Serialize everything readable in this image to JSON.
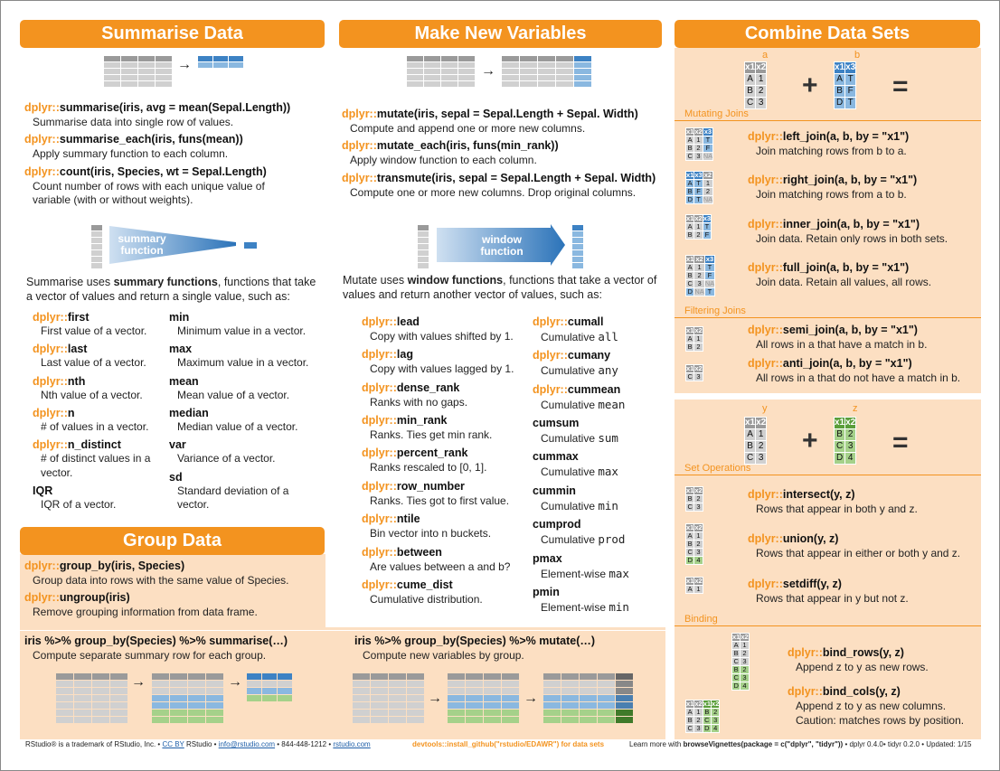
{
  "summarise": {
    "title": "Summarise Data",
    "items": [
      {
        "pkg": "dplyr::",
        "fn": "summarise(iris, avg = mean(Sepal.Length))",
        "desc": "Summarise data into single row of values."
      },
      {
        "pkg": "dplyr::",
        "fn": "summarise_each(iris, funs(mean))",
        "desc": "Apply summary function to each column."
      },
      {
        "pkg": "dplyr::",
        "fn": "count(iris, Species, wt = Sepal.Length)",
        "desc": "Count number of rows with each unique value of variable (with or without weights)."
      }
    ],
    "diagram_label": "summary function",
    "intro_pre": "Summarise uses ",
    "intro_bold": "summary functions",
    "intro_post": ", functions that take a vector of values and return a single value, such as:",
    "left_funcs": [
      {
        "pkg": "dplyr::",
        "fn": "first",
        "desc": "First value of a vector."
      },
      {
        "pkg": "dplyr::",
        "fn": "last",
        "desc": "Last value of a vector."
      },
      {
        "pkg": "dplyr::",
        "fn": "nth",
        "desc": "Nth value of a vector."
      },
      {
        "pkg": "dplyr::",
        "fn": "n",
        "desc": "# of values in a vector."
      },
      {
        "pkg": "dplyr::",
        "fn": "n_distinct",
        "desc": "# of distinct values in a vector."
      },
      {
        "pkg": "",
        "fn": "IQR",
        "desc": "IQR of a vector."
      }
    ],
    "right_funcs": [
      {
        "fn": "min",
        "desc": "Minimum value in a vector."
      },
      {
        "fn": "max",
        "desc": "Maximum value in a vector."
      },
      {
        "fn": "mean",
        "desc": "Mean value of a vector."
      },
      {
        "fn": "median",
        "desc": "Median value of a vector."
      },
      {
        "fn": "var",
        "desc": "Variance of a vector."
      },
      {
        "fn": "sd",
        "desc": "Standard deviation of a vector."
      }
    ]
  },
  "group": {
    "title": "Group Data",
    "items": [
      {
        "pkg": "dplyr::",
        "fn": "group_by(iris, Species)",
        "desc": "Group data into rows with the same value of Species."
      },
      {
        "pkg": "dplyr::",
        "fn": "ungroup(iris)",
        "desc": "Remove grouping information from data frame."
      }
    ],
    "pipe_left": {
      "code": "iris  %>%  group_by(Species)  %>%  summarise(…)",
      "desc": "Compute separate summary row for each group."
    },
    "pipe_right": {
      "code": "iris  %>%  group_by(Species)  %>%  mutate(…)",
      "desc": "Compute new variables by group."
    }
  },
  "mutate": {
    "title": "Make New Variables",
    "items": [
      {
        "pkg": "dplyr::",
        "fn": "mutate(iris, sepal = Sepal.Length + Sepal. Width)",
        "desc": "Compute and append one or more new columns."
      },
      {
        "pkg": "dplyr::",
        "fn": "mutate_each(iris, funs(min_rank))",
        "desc": "Apply window function to each column."
      },
      {
        "pkg": "dplyr::",
        "fn": "transmute(iris, sepal = Sepal.Length + Sepal. Width)",
        "desc": "Compute one or more new columns. Drop original columns."
      }
    ],
    "diagram_label": "window function",
    "intro_pre": "Mutate uses ",
    "intro_bold": "window functions",
    "intro_post": ", functions that take a vector of values and return another vector of values, such as:",
    "left_funcs": [
      {
        "pkg": "dplyr::",
        "fn": "lead",
        "desc": "Copy with values shifted by 1."
      },
      {
        "pkg": "dplyr::",
        "fn": "lag",
        "desc": "Copy with values lagged by 1."
      },
      {
        "pkg": "dplyr::",
        "fn": "dense_rank",
        "desc": "Ranks with no gaps."
      },
      {
        "pkg": "dplyr::",
        "fn": "min_rank",
        "desc": "Ranks. Ties get min rank."
      },
      {
        "pkg": "dplyr::",
        "fn": "percent_rank",
        "desc": "Ranks rescaled to [0, 1]."
      },
      {
        "pkg": "dplyr::",
        "fn": "row_number",
        "desc": "Ranks. Ties got to first value."
      },
      {
        "pkg": "dplyr::",
        "fn": "ntile",
        "desc": "Bin vector into n buckets."
      },
      {
        "pkg": "dplyr::",
        "fn": "between",
        "desc": "Are values between a and b?"
      },
      {
        "pkg": "dplyr::",
        "fn": "cume_dist",
        "desc": "Cumulative distribution."
      }
    ],
    "right_funcs": [
      {
        "pkg": "dplyr::",
        "fn": "cumall",
        "desc_pre": "Cumulative ",
        "desc_mono": "all"
      },
      {
        "pkg": "dplyr::",
        "fn": "cumany",
        "desc_pre": "Cumulative ",
        "desc_mono": "any"
      },
      {
        "pkg": "dplyr::",
        "fn": "cummean",
        "desc_pre": "Cumulative ",
        "desc_mono": "mean"
      },
      {
        "pkg": "",
        "fn": "cumsum",
        "desc_pre": "Cumulative ",
        "desc_mono": "sum"
      },
      {
        "pkg": "",
        "fn": "cummax",
        "desc_pre": "Cumulative ",
        "desc_mono": "max"
      },
      {
        "pkg": "",
        "fn": "cummin",
        "desc_pre": "Cumulative ",
        "desc_mono": "min"
      },
      {
        "pkg": "",
        "fn": "cumprod",
        "desc_pre": "Cumulative ",
        "desc_mono": "prod"
      },
      {
        "pkg": "",
        "fn": "pmax",
        "desc_pre": "Element-wise ",
        "desc_mono": "max"
      },
      {
        "pkg": "",
        "fn": "pmin",
        "desc_pre": "Element-wise ",
        "desc_mono": "min"
      }
    ]
  },
  "combine": {
    "title": "Combine Data Sets",
    "label_a": "a",
    "label_b": "b",
    "label_y": "y",
    "label_z": "z",
    "plus": "+",
    "equals": "=",
    "mutating_label": "Mutating Joins",
    "filtering_label": "Filtering Joins",
    "setops_label": "Set Operations",
    "binding_label": "Binding",
    "joins": [
      {
        "pkg": "dplyr::",
        "fn": "left_join(a, b, by = \"x1\")",
        "desc": "Join matching rows from b to a."
      },
      {
        "pkg": "dplyr::",
        "fn": "right_join(a, b, by = \"x1\")",
        "desc": "Join matching rows from a to b."
      },
      {
        "pkg": "dplyr::",
        "fn": "inner_join(a, b, by = \"x1\")",
        "desc": "Join data. Retain only rows in both sets."
      },
      {
        "pkg": "dplyr::",
        "fn": "full_join(a, b, by = \"x1\")",
        "desc": "Join data. Retain all values, all rows."
      }
    ],
    "filters": [
      {
        "pkg": "dplyr::",
        "fn": "semi_join(a, b, by = \"x1\")",
        "desc": "All rows in a that have a match in b."
      },
      {
        "pkg": "dplyr::",
        "fn": "anti_join(a, b, by = \"x1\")",
        "desc": "All rows in a that do not have a match in b."
      }
    ],
    "setops": [
      {
        "pkg": "dplyr::",
        "fn": "intersect(y, z)",
        "desc": "Rows that appear in both y and z."
      },
      {
        "pkg": "dplyr::",
        "fn": "union(y, z)",
        "desc": "Rows that appear in either or both y and z."
      },
      {
        "pkg": "dplyr::",
        "fn": "setdiff(y, z)",
        "desc": "Rows that appear in y but not z."
      }
    ],
    "binds": [
      {
        "pkg": "dplyr::",
        "fn": "bind_rows(y, z)",
        "desc": "Append z to y as new rows."
      },
      {
        "pkg": "dplyr::",
        "fn": "bind_cols(y, z)",
        "desc": "Append z to y as new columns.",
        "desc2": "Caution: matches rows by position."
      }
    ],
    "tables": {
      "a": {
        "cols": [
          "x1",
          "x2"
        ],
        "rows": [
          [
            "A",
            "1"
          ],
          [
            "B",
            "2"
          ],
          [
            "C",
            "3"
          ]
        ]
      },
      "b": {
        "cols": [
          "x1",
          "x3"
        ],
        "rows": [
          [
            "A",
            "T"
          ],
          [
            "B",
            "F"
          ],
          [
            "D",
            "T"
          ]
        ]
      },
      "y": {
        "cols": [
          "x1",
          "x2"
        ],
        "rows": [
          [
            "A",
            "1"
          ],
          [
            "B",
            "2"
          ],
          [
            "C",
            "3"
          ]
        ]
      },
      "z": {
        "cols": [
          "x1",
          "x2"
        ],
        "rows": [
          [
            "B",
            "2"
          ],
          [
            "C",
            "3"
          ],
          [
            "D",
            "4"
          ]
        ]
      },
      "left": {
        "cols": [
          "x1",
          "x2",
          "x3"
        ],
        "rows": [
          [
            "A",
            "1",
            "T"
          ],
          [
            "B",
            "2",
            "F"
          ],
          [
            "C",
            "3",
            "NA"
          ]
        ]
      },
      "right": {
        "cols": [
          "x1",
          "x3",
          "x2"
        ],
        "rows": [
          [
            "A",
            "T",
            "1"
          ],
          [
            "B",
            "F",
            "2"
          ],
          [
            "D",
            "T",
            "NA"
          ]
        ]
      },
      "inner": {
        "cols": [
          "x1",
          "x2",
          "x3"
        ],
        "rows": [
          [
            "A",
            "1",
            "T"
          ],
          [
            "B",
            "2",
            "F"
          ]
        ]
      },
      "full": {
        "cols": [
          "x1",
          "x2",
          "x3"
        ],
        "rows": [
          [
            "A",
            "1",
            "T"
          ],
          [
            "B",
            "2",
            "F"
          ],
          [
            "C",
            "3",
            "NA"
          ],
          [
            "D",
            "NA",
            "T"
          ]
        ]
      },
      "semi": {
        "cols": [
          "x1",
          "x2"
        ],
        "rows": [
          [
            "A",
            "1"
          ],
          [
            "B",
            "2"
          ]
        ]
      },
      "anti": {
        "cols": [
          "x1",
          "x2"
        ],
        "rows": [
          [
            "C",
            "3"
          ]
        ]
      },
      "intersect": {
        "cols": [
          "x1",
          "x2"
        ],
        "rows": [
          [
            "B",
            "2"
          ],
          [
            "C",
            "3"
          ]
        ]
      },
      "union": {
        "cols": [
          "x1",
          "x2"
        ],
        "rows": [
          [
            "A",
            "1"
          ],
          [
            "B",
            "2"
          ],
          [
            "C",
            "3"
          ],
          [
            "D",
            "4"
          ]
        ]
      },
      "setdiff": {
        "cols": [
          "x1",
          "x2"
        ],
        "rows": [
          [
            "A",
            "1"
          ]
        ]
      },
      "bindrows": {
        "cols": [
          "x1",
          "x2"
        ],
        "rows": [
          [
            "A",
            "1"
          ],
          [
            "B",
            "2"
          ],
          [
            "C",
            "3"
          ],
          [
            "B",
            "2"
          ],
          [
            "C",
            "3"
          ],
          [
            "D",
            "4"
          ]
        ]
      },
      "bindcols": {
        "cols": [
          "x1",
          "x2",
          "x1",
          "x2"
        ],
        "rows": [
          [
            "A",
            "1",
            "B",
            "2"
          ],
          [
            "B",
            "2",
            "C",
            "3"
          ],
          [
            "C",
            "3",
            "D",
            "4"
          ]
        ]
      }
    }
  },
  "footer": {
    "left_pre": "RStudio® is a trademark of RStudio, Inc. • ",
    "ccby": "CC BY",
    "left_mid": " RStudio • ",
    "email": "info@rstudio.com",
    "phone": " • 844-448-1212 • ",
    "site": "rstudio.com",
    "middle": "devtools::install_github(\"rstudio/EDAWR\") for data sets",
    "right_pre": "Learn more with ",
    "right_bold": "browseVignettes(package = c(\"dplyr\", \"tidyr\"))",
    "right_post": " • dplyr 0.4.0• tidyr 0.2.0 • Updated: 1/15"
  },
  "colors": {
    "orange": "#f3931f",
    "peach": "#fcdfc2",
    "blue": "#3d82c4",
    "green": "#5a9e3a",
    "gray": "#9a9a9a"
  }
}
